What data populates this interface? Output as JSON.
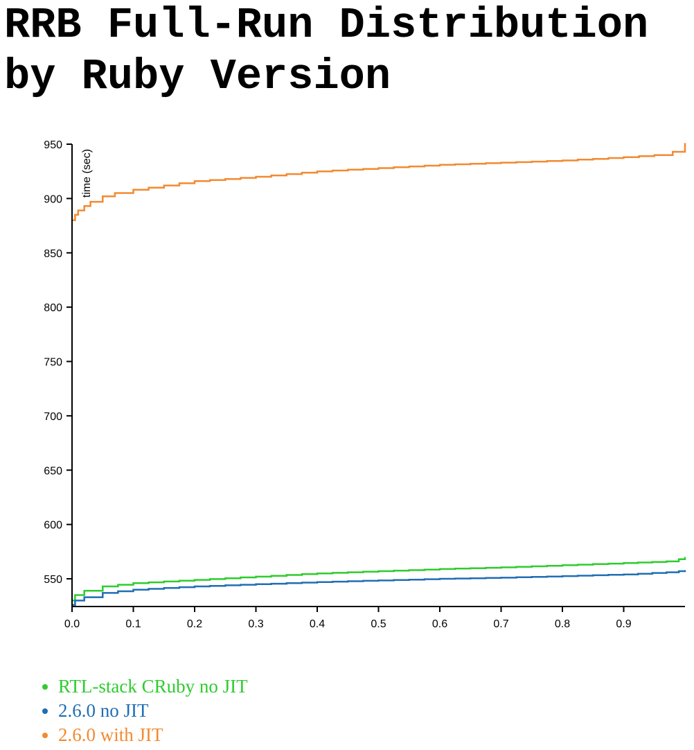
{
  "page": {
    "title": "RRB Full-Run Distribution by Ruby Version"
  },
  "chart_data": {
    "type": "line",
    "title": "RRB Full-Run Distribution by Ruby Version",
    "xlabel": "",
    "ylabel": "time (sec)",
    "xlim": [
      0,
      1
    ],
    "ylim": [
      525,
      950
    ],
    "x_ticks": [
      "0.0",
      "0.1",
      "0.2",
      "0.3",
      "0.4",
      "0.5",
      "0.6",
      "0.7",
      "0.8",
      "0.9"
    ],
    "y_ticks": [
      "550",
      "600",
      "650",
      "700",
      "750",
      "800",
      "850",
      "900",
      "950"
    ],
    "grid": false,
    "legend": "bottom",
    "series": [
      {
        "name": "RTL-stack CRuby no JIT",
        "color": "#2ecc2e",
        "points": [
          [
            0.0,
            530
          ],
          [
            0.005,
            535
          ],
          [
            0.02,
            539
          ],
          [
            0.05,
            543
          ],
          [
            0.1,
            546
          ],
          [
            0.2,
            549
          ],
          [
            0.3,
            552
          ],
          [
            0.4,
            555
          ],
          [
            0.5,
            557
          ],
          [
            0.6,
            559
          ],
          [
            0.7,
            560.5
          ],
          [
            0.8,
            562.5
          ],
          [
            0.9,
            564.5
          ],
          [
            0.97,
            566
          ],
          [
            0.99,
            568
          ],
          [
            1.0,
            570
          ]
        ]
      },
      {
        "name": "2.6.0 no JIT",
        "color": "#1f6eb4",
        "points": [
          [
            0.0,
            526
          ],
          [
            0.005,
            530
          ],
          [
            0.02,
            533
          ],
          [
            0.05,
            537
          ],
          [
            0.1,
            540
          ],
          [
            0.2,
            543
          ],
          [
            0.3,
            545
          ],
          [
            0.4,
            547
          ],
          [
            0.5,
            548.5
          ],
          [
            0.6,
            550
          ],
          [
            0.7,
            551
          ],
          [
            0.8,
            552.5
          ],
          [
            0.9,
            554
          ],
          [
            0.97,
            556
          ],
          [
            0.99,
            557
          ],
          [
            1.0,
            558
          ]
        ]
      },
      {
        "name": "2.6.0 with JIT",
        "color": "#f28a30",
        "points": [
          [
            0.0,
            880
          ],
          [
            0.005,
            885
          ],
          [
            0.01,
            889
          ],
          [
            0.02,
            893
          ],
          [
            0.03,
            897
          ],
          [
            0.05,
            902
          ],
          [
            0.07,
            905
          ],
          [
            0.1,
            908
          ],
          [
            0.15,
            912
          ],
          [
            0.2,
            916
          ],
          [
            0.3,
            920
          ],
          [
            0.4,
            925
          ],
          [
            0.5,
            928
          ],
          [
            0.6,
            931
          ],
          [
            0.7,
            933
          ],
          [
            0.8,
            935
          ],
          [
            0.9,
            938
          ],
          [
            0.95,
            940
          ],
          [
            0.98,
            943
          ],
          [
            1.0,
            951
          ]
        ]
      }
    ]
  }
}
